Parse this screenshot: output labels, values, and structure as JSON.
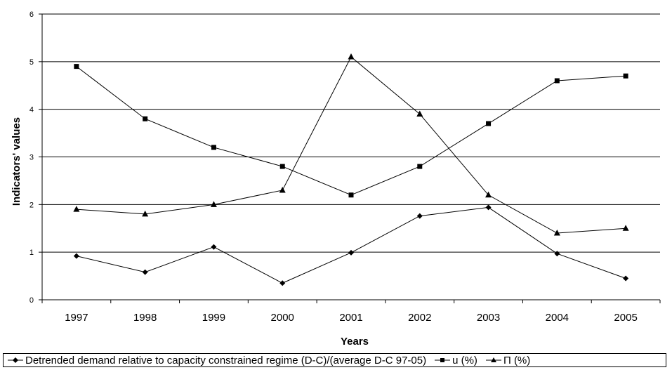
{
  "chart_data": {
    "type": "line",
    "title": "",
    "xlabel": "Years",
    "ylabel": "Indicators' values",
    "categories": [
      "1997",
      "1998",
      "1999",
      "2000",
      "2001",
      "2002",
      "2003",
      "2004",
      "2005"
    ],
    "ylim": [
      0,
      6
    ],
    "yticks": [
      "0",
      "1",
      "2",
      "3",
      "4",
      "5",
      "6"
    ],
    "grid": "horizontal",
    "legend_position": "bottom",
    "series": [
      {
        "name": "Detrended demand relative to capacity constrained regime (D-C)/(average D-C  97-05)",
        "marker": "diamond",
        "values": [
          0.92,
          0.58,
          1.11,
          0.35,
          0.99,
          1.76,
          1.94,
          0.97,
          0.45
        ]
      },
      {
        "name": "u (%)",
        "marker": "square",
        "values": [
          4.9,
          3.8,
          3.2,
          2.8,
          2.2,
          2.8,
          3.7,
          4.6,
          4.7
        ]
      },
      {
        "name": "Π (%)",
        "marker": "triangle",
        "values": [
          1.9,
          1.8,
          2.0,
          2.3,
          5.1,
          3.9,
          2.2,
          1.4,
          1.5
        ]
      }
    ],
    "colors": {
      "line": "#000000",
      "grid": "#000000"
    }
  }
}
